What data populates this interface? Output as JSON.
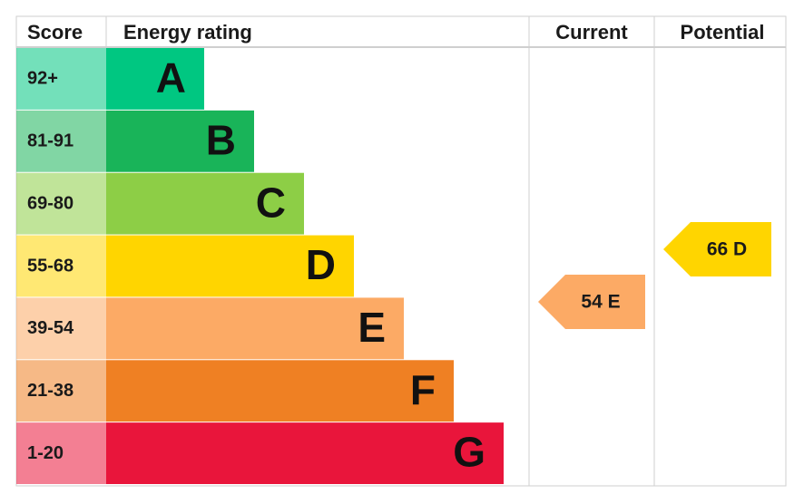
{
  "header": {
    "score": "Score",
    "rating": "Energy rating",
    "current": "Current",
    "potential": "Potential"
  },
  "bands": [
    {
      "score": "92+",
      "letter": "A",
      "color": "#00c781"
    },
    {
      "score": "81-91",
      "letter": "B",
      "color": "#19b459"
    },
    {
      "score": "69-80",
      "letter": "C",
      "color": "#8dce46"
    },
    {
      "score": "55-68",
      "letter": "D",
      "color": "#ffd500"
    },
    {
      "score": "39-54",
      "letter": "E",
      "color": "#fcaa65"
    },
    {
      "score": "21-38",
      "letter": "F",
      "color": "#ef8023"
    },
    {
      "score": "1-20",
      "letter": "G",
      "color": "#e9153b"
    }
  ],
  "current": {
    "label": "54 E",
    "color": "#fcaa65"
  },
  "potential": {
    "label": "66 D",
    "color": "#ffd500"
  }
}
